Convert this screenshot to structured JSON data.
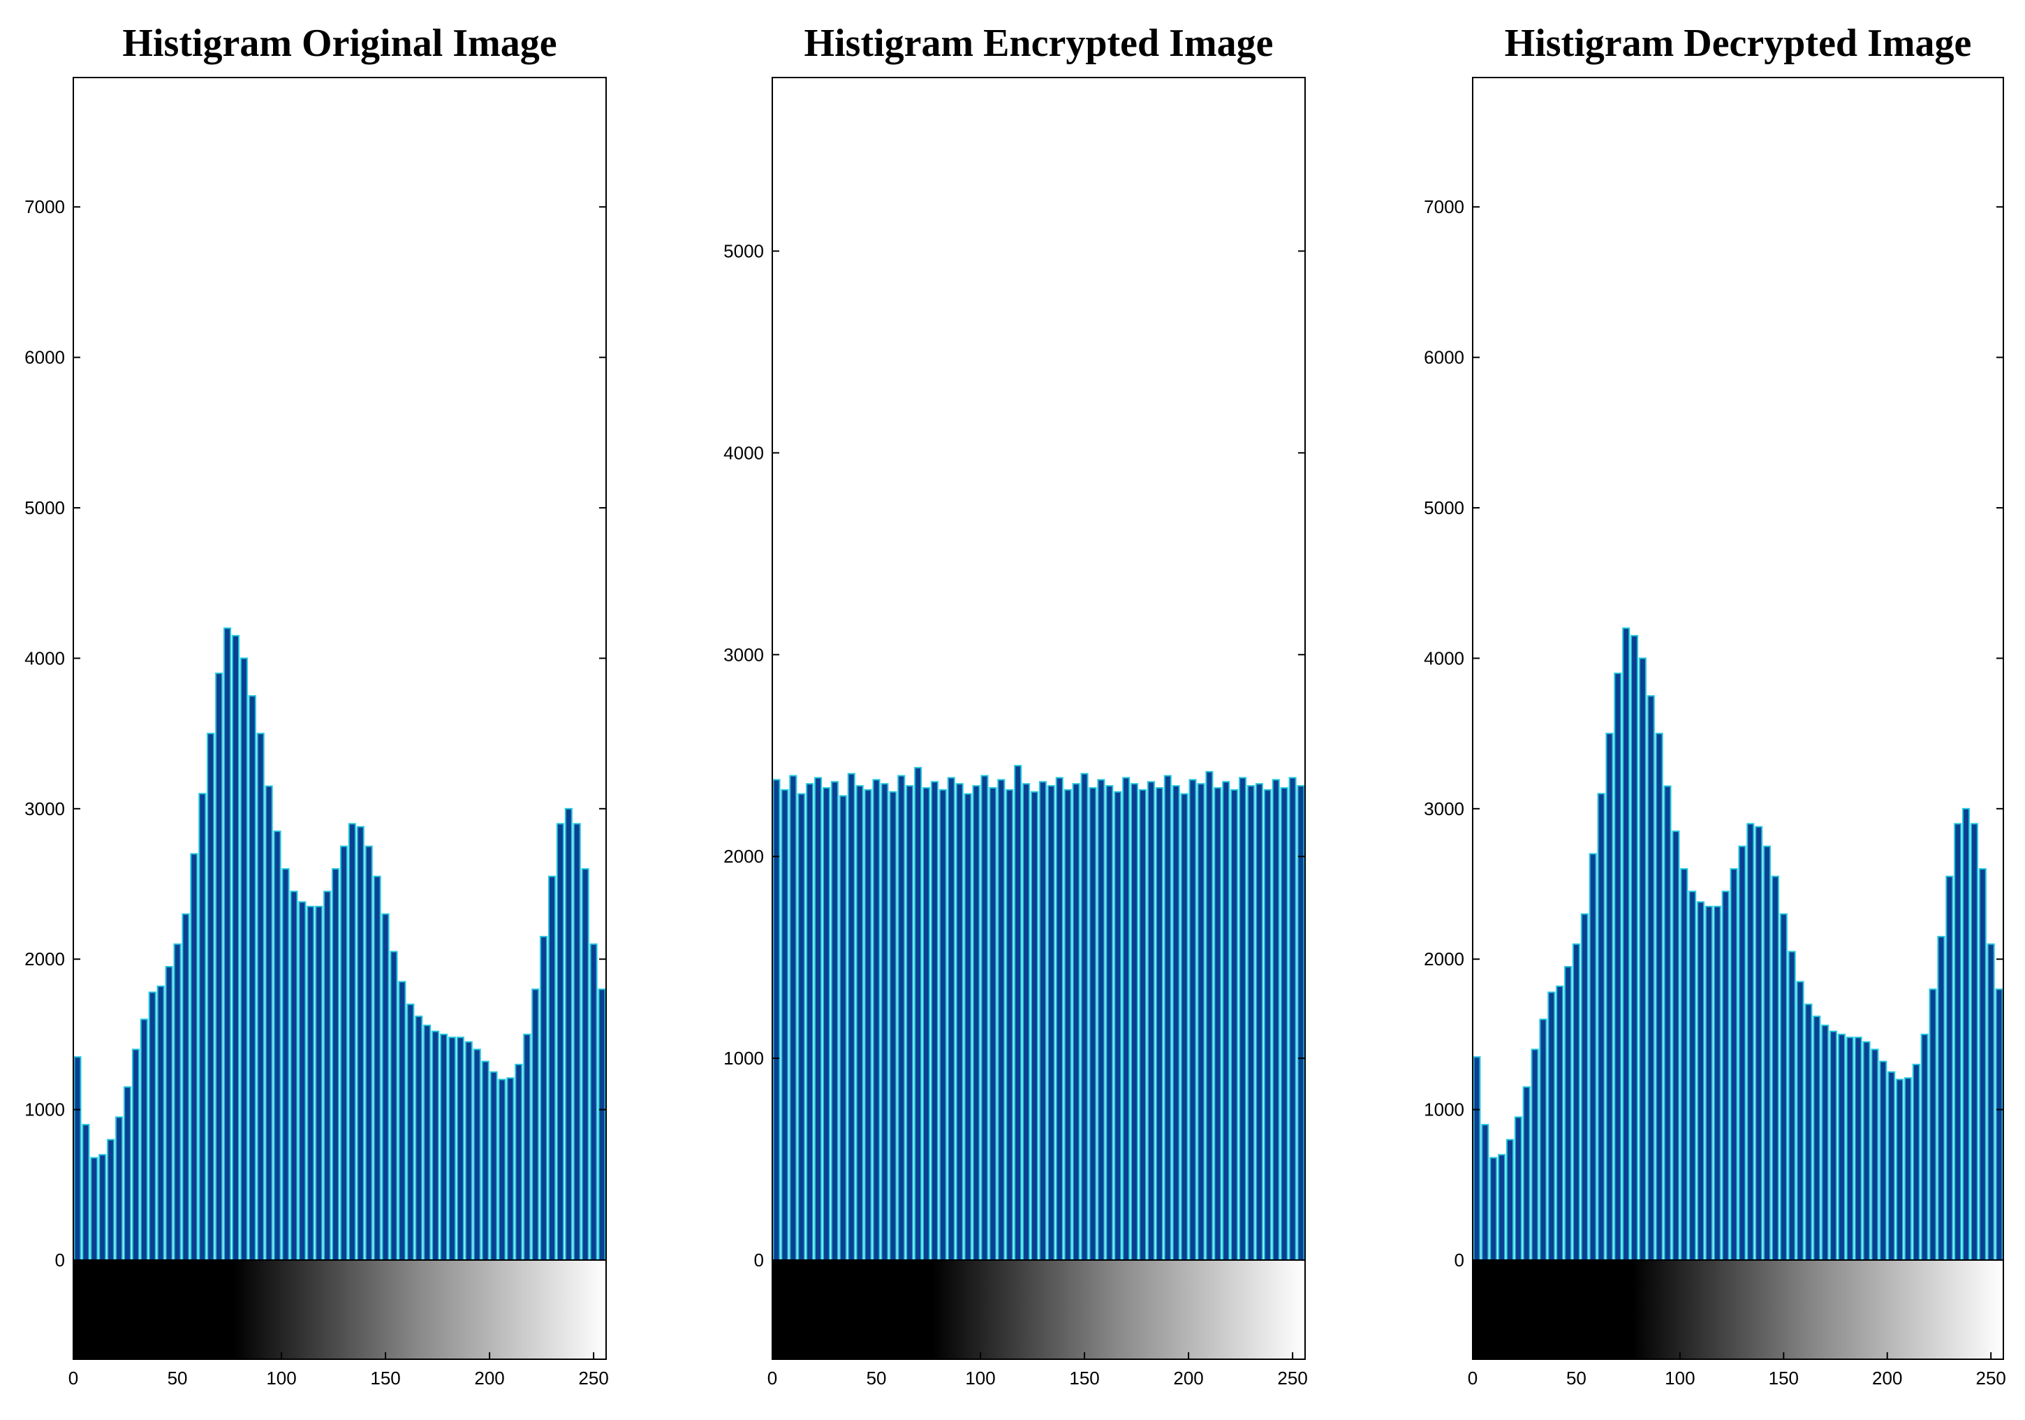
{
  "chart_data": [
    {
      "type": "histogram",
      "title": "Histigram Original Image",
      "bins": [
        0,
        4,
        8,
        12,
        16,
        20,
        24,
        28,
        32,
        36,
        40,
        44,
        48,
        52,
        56,
        60,
        64,
        68,
        72,
        76,
        80,
        84,
        88,
        92,
        96,
        100,
        104,
        108,
        112,
        116,
        120,
        124,
        128,
        132,
        136,
        140,
        144,
        148,
        152,
        156,
        160,
        164,
        168,
        172,
        176,
        180,
        184,
        188,
        192,
        196,
        200,
        204,
        208,
        212,
        216,
        220,
        224,
        228,
        232,
        236,
        240,
        244,
        248,
        252,
        256
      ],
      "values": [
        1350,
        900,
        680,
        700,
        800,
        950,
        1150,
        1400,
        1600,
        1780,
        1820,
        1950,
        2100,
        2300,
        2700,
        3100,
        3500,
        3900,
        4200,
        4150,
        4000,
        3750,
        3500,
        3150,
        2850,
        2600,
        2450,
        2380,
        2350,
        2350,
        2450,
        2600,
        2750,
        2900,
        2880,
        2750,
        2550,
        2300,
        2050,
        1850,
        1700,
        1620,
        1560,
        1520,
        1500,
        1480,
        1480,
        1450,
        1400,
        1320,
        1250,
        1200,
        1210,
        1300,
        1500,
        1800,
        2150,
        2550,
        2900,
        3000,
        2900,
        2600,
        2100,
        1800
      ],
      "color": "#0b3f91",
      "edge_color": "#22c6dc",
      "xlim": [
        0,
        256
      ],
      "xticks": [
        0,
        50,
        100,
        150,
        200,
        250
      ],
      "ylim": [
        0,
        7860
      ],
      "yticks": [
        0,
        1000,
        2000,
        3000,
        4000,
        5000,
        6000,
        7000
      ]
    },
    {
      "type": "histogram",
      "title": "Histigram Encrypted Image",
      "bins": [
        0,
        4,
        8,
        12,
        16,
        20,
        24,
        28,
        32,
        36,
        40,
        44,
        48,
        52,
        56,
        60,
        64,
        68,
        72,
        76,
        80,
        84,
        88,
        92,
        96,
        100,
        104,
        108,
        112,
        116,
        120,
        124,
        128,
        132,
        136,
        140,
        144,
        148,
        152,
        156,
        160,
        164,
        168,
        172,
        176,
        180,
        184,
        188,
        192,
        196,
        200,
        204,
        208,
        212,
        216,
        220,
        224,
        228,
        232,
        236,
        240,
        244,
        248,
        252,
        256
      ],
      "values": [
        2380,
        2330,
        2400,
        2310,
        2360,
        2390,
        2340,
        2370,
        2300,
        2410,
        2350,
        2330,
        2380,
        2360,
        2320,
        2400,
        2350,
        2440,
        2340,
        2370,
        2330,
        2390,
        2360,
        2310,
        2350,
        2400,
        2340,
        2380,
        2330,
        2450,
        2360,
        2320,
        2370,
        2350,
        2390,
        2330,
        2360,
        2410,
        2340,
        2380,
        2350,
        2320,
        2390,
        2360,
        2330,
        2370,
        2340,
        2400,
        2350,
        2310,
        2380,
        2360,
        2420,
        2340,
        2370,
        2330,
        2390,
        2350,
        2360,
        2330,
        2380,
        2340,
        2390,
        2350
      ],
      "color": "#0b3f91",
      "edge_color": "#22c6dc",
      "xlim": [
        0,
        256
      ],
      "xticks": [
        0,
        50,
        100,
        150,
        200,
        250
      ],
      "ylim": [
        0,
        5860
      ],
      "yticks": [
        0,
        1000,
        2000,
        3000,
        4000,
        5000
      ]
    },
    {
      "type": "histogram",
      "title": "Histigram Decrypted Image",
      "bins": [
        0,
        4,
        8,
        12,
        16,
        20,
        24,
        28,
        32,
        36,
        40,
        44,
        48,
        52,
        56,
        60,
        64,
        68,
        72,
        76,
        80,
        84,
        88,
        92,
        96,
        100,
        104,
        108,
        112,
        116,
        120,
        124,
        128,
        132,
        136,
        140,
        144,
        148,
        152,
        156,
        160,
        164,
        168,
        172,
        176,
        180,
        184,
        188,
        192,
        196,
        200,
        204,
        208,
        212,
        216,
        220,
        224,
        228,
        232,
        236,
        240,
        244,
        248,
        252,
        256
      ],
      "values": [
        1350,
        900,
        680,
        700,
        800,
        950,
        1150,
        1400,
        1600,
        1780,
        1820,
        1950,
        2100,
        2300,
        2700,
        3100,
        3500,
        3900,
        4200,
        4150,
        4000,
        3750,
        3500,
        3150,
        2850,
        2600,
        2450,
        2380,
        2350,
        2350,
        2450,
        2600,
        2750,
        2900,
        2880,
        2750,
        2550,
        2300,
        2050,
        1850,
        1700,
        1620,
        1560,
        1520,
        1500,
        1480,
        1480,
        1450,
        1400,
        1320,
        1250,
        1200,
        1210,
        1300,
        1500,
        1800,
        2150,
        2550,
        2900,
        3000,
        2900,
        2600,
        2100,
        1800
      ],
      "color": "#0b3f91",
      "edge_color": "#22c6dc",
      "xlim": [
        0,
        256
      ],
      "xticks": [
        0,
        50,
        100,
        150,
        200,
        250
      ],
      "ylim": [
        0,
        7860
      ],
      "yticks": [
        0,
        1000,
        2000,
        3000,
        4000,
        5000,
        6000,
        7000
      ]
    }
  ]
}
